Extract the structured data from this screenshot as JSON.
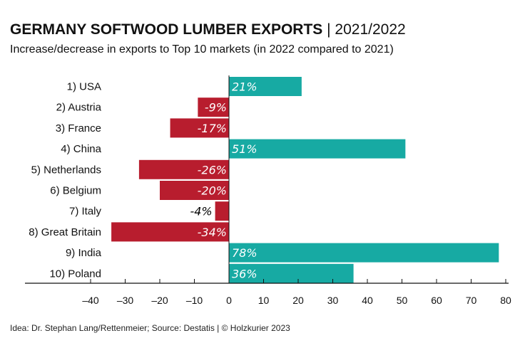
{
  "header": {
    "title_bold": "GERMANY SOFTWOOD LUMBER EXPORTS",
    "title_rest": "| 2021/2022",
    "subtitle": "Increase/decrease in exports to Top 10 markets (in 2022 compared to 2021)"
  },
  "footer": {
    "source": "Idea: Dr. Stephan Lang/Rettenmeier; Source: Destatis | © Holzkurier 2023"
  },
  "colors": {
    "positive": "#17aaa3",
    "negative": "#b81d2e"
  },
  "chart_data": {
    "type": "bar",
    "orientation": "horizontal",
    "title": "GERMANY SOFTWOOD LUMBER EXPORTS | 2021/2022",
    "subtitle": "Increase/decrease in exports to Top 10 markets (in 2022 compared to 2021)",
    "categories": [
      "1)  USA",
      "2)  Austria",
      "3)  France",
      "4)  China",
      "5)  Netherlands",
      "6)  Belgium",
      "7)  Italy",
      "8)  Great Britain",
      "9)  India",
      "10)  Poland"
    ],
    "values": [
      21,
      -9,
      -17,
      51,
      -26,
      -20,
      -4,
      -34,
      78,
      36
    ],
    "data_labels": [
      "21%",
      "-9%",
      "-17%",
      "51%",
      "-26%",
      "-20%",
      "-4%",
      "-34%",
      "78%",
      "36%"
    ],
    "unit": "%",
    "xlim": [
      -40,
      80
    ],
    "xticks": [
      -40,
      -30,
      -20,
      -10,
      0,
      10,
      20,
      30,
      40,
      50,
      60,
      70,
      80
    ],
    "xtick_labels": [
      "–40",
      "–30",
      "–20",
      "–10",
      "0",
      "10",
      "20",
      "30",
      "40",
      "50",
      "60",
      "70",
      "80"
    ],
    "grid": false,
    "legend": "none"
  }
}
